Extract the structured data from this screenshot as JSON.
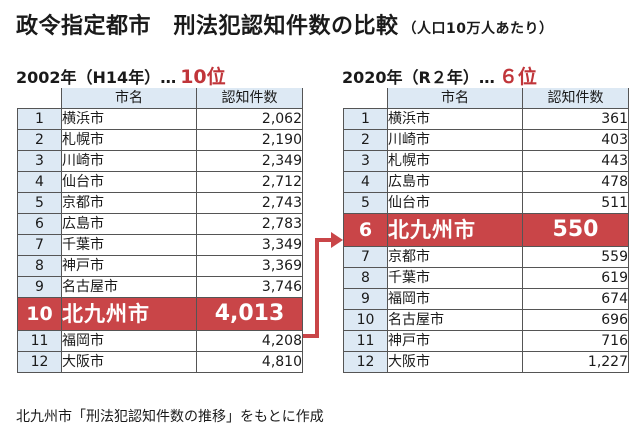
{
  "title": {
    "main": "政令指定都市　刑法犯認知件数の比較",
    "sub": "（人口10万人あたり）"
  },
  "left": {
    "year_label": "2002年（H14年）…",
    "rank_label": "10位",
    "headers": {
      "city": "市名",
      "count": "認知件数"
    },
    "rows": [
      {
        "rank": "1",
        "city": "横浜市",
        "value": "2,062"
      },
      {
        "rank": "2",
        "city": "札幌市",
        "value": "2,190"
      },
      {
        "rank": "3",
        "city": "川崎市",
        "value": "2,349"
      },
      {
        "rank": "4",
        "city": "仙台市",
        "value": "2,712"
      },
      {
        "rank": "5",
        "city": "京都市",
        "value": "2,743"
      },
      {
        "rank": "6",
        "city": "広島市",
        "value": "2,783"
      },
      {
        "rank": "7",
        "city": "千葉市",
        "value": "3,349"
      },
      {
        "rank": "8",
        "city": "神戸市",
        "value": "3,369"
      },
      {
        "rank": "9",
        "city": "名古屋市",
        "value": "3,746"
      },
      {
        "rank": "10",
        "city": "北九州市",
        "value": "4,013",
        "highlight": true
      },
      {
        "rank": "11",
        "city": "福岡市",
        "value": "4,208"
      },
      {
        "rank": "12",
        "city": "大阪市",
        "value": "4,810"
      }
    ]
  },
  "right": {
    "year_label": "2020年（R２年）…",
    "rank_label": "６位",
    "headers": {
      "city": "市名",
      "count": "認知件数"
    },
    "rows": [
      {
        "rank": "1",
        "city": "横浜市",
        "value": "361"
      },
      {
        "rank": "2",
        "city": "川崎市",
        "value": "403"
      },
      {
        "rank": "3",
        "city": "札幌市",
        "value": "443"
      },
      {
        "rank": "4",
        "city": "広島市",
        "value": "478"
      },
      {
        "rank": "5",
        "city": "仙台市",
        "value": "511"
      },
      {
        "rank": "6",
        "city": "北九州市",
        "value": "550",
        "highlight": true
      },
      {
        "rank": "7",
        "city": "京都市",
        "value": "559"
      },
      {
        "rank": "8",
        "city": "千葉市",
        "value": "619"
      },
      {
        "rank": "9",
        "city": "福岡市",
        "value": "674"
      },
      {
        "rank": "10",
        "city": "名古屋市",
        "value": "696"
      },
      {
        "rank": "11",
        "city": "神戸市",
        "value": "716"
      },
      {
        "rank": "12",
        "city": "大阪市",
        "value": "1,227"
      }
    ]
  },
  "footnote": "北九州市「刑法犯認知件数の推移」をもとに作成",
  "colors": {
    "highlight": "#c94548",
    "header_fill": "#dde9f4",
    "rank_text": "#c0353a"
  }
}
